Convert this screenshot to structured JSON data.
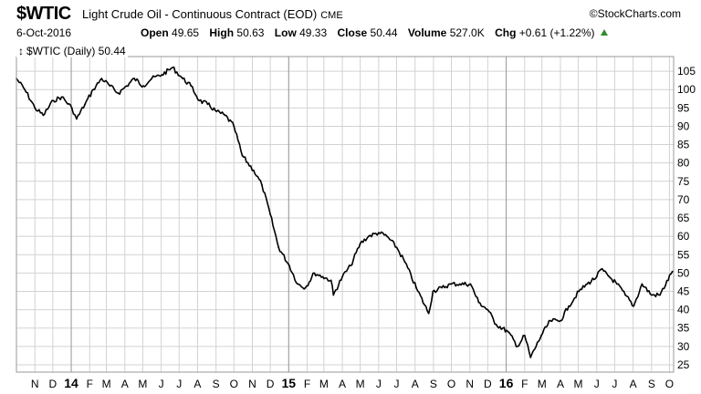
{
  "header": {
    "symbol": "$WTIC",
    "description": "Light Crude Oil - Continuous Contract (EOD)",
    "exchange": "CME",
    "brand": "©StockCharts.com",
    "date": "6-Oct-2016",
    "open_label": "Open",
    "open": "49.65",
    "high_label": "High",
    "high": "50.63",
    "low_label": "Low",
    "low": "49.33",
    "close_label": "Close",
    "close": "50.44",
    "volume_label": "Volume",
    "volume": "527.0K",
    "chg_label": "Chg",
    "chg": "+0.61 (+1.22%)"
  },
  "legend": {
    "mark": "↕",
    "text": "$WTIC (Daily) 50.44"
  },
  "colors": {
    "line": "#000000",
    "grid": "#d2d2d2",
    "frame": "#9a9a9a",
    "up": "#2e8b2e"
  },
  "chart_data": {
    "type": "line",
    "series": [
      {
        "name": "$WTIC (Daily)",
        "x": [
          "2013-10-01",
          "2013-10-15",
          "2013-11-01",
          "2013-11-15",
          "2013-12-02",
          "2013-12-16",
          "2014-01-02",
          "2014-01-10",
          "2014-01-24",
          "2014-02-07",
          "2014-02-21",
          "2014-03-07",
          "2014-03-21",
          "2014-04-04",
          "2014-04-17",
          "2014-05-02",
          "2014-05-16",
          "2014-06-02",
          "2014-06-20",
          "2014-07-07",
          "2014-07-21",
          "2014-08-04",
          "2014-08-18",
          "2014-09-02",
          "2014-09-16",
          "2014-10-01",
          "2014-10-15",
          "2014-11-03",
          "2014-11-17",
          "2014-12-01",
          "2014-12-15",
          "2015-01-02",
          "2015-01-16",
          "2015-01-29",
          "2015-02-13",
          "2015-02-27",
          "2015-03-13",
          "2015-03-17",
          "2015-04-01",
          "2015-04-15",
          "2015-05-01",
          "2015-05-15",
          "2015-06-01",
          "2015-06-15",
          "2015-07-01",
          "2015-07-15",
          "2015-08-03",
          "2015-08-24",
          "2015-08-31",
          "2015-09-15",
          "2015-10-01",
          "2015-10-15",
          "2015-11-02",
          "2015-11-16",
          "2015-12-01",
          "2015-12-15",
          "2016-01-04",
          "2016-01-20",
          "2016-02-01",
          "2016-02-11",
          "2016-02-29",
          "2016-03-15",
          "2016-04-01",
          "2016-04-15",
          "2016-05-02",
          "2016-05-16",
          "2016-06-01",
          "2016-06-08",
          "2016-06-22",
          "2016-07-05",
          "2016-07-19",
          "2016-08-02",
          "2016-08-16",
          "2016-09-01",
          "2016-09-15",
          "2016-10-06"
        ],
        "values": [
          103,
          100,
          95,
          93,
          97,
          98,
          95,
          92,
          96,
          100,
          103,
          101,
          99,
          101,
          103,
          101,
          103,
          104,
          106,
          103,
          101,
          97,
          96,
          94,
          93,
          90,
          82,
          78,
          74,
          66,
          57,
          52,
          47,
          46,
          50,
          49,
          48,
          44,
          49,
          52,
          58,
          60,
          61,
          60,
          57,
          53,
          46,
          39,
          45,
          46,
          47,
          47,
          47,
          42,
          40,
          36,
          34,
          30,
          33,
          27,
          33,
          37,
          37,
          41,
          45,
          47,
          49,
          51,
          49,
          47,
          44,
          41,
          47,
          44,
          44,
          50.44
        ]
      }
    ],
    "title": "$WTIC (Daily) 50.44",
    "xlabel": "",
    "ylabel": "",
    "ylim": [
      23,
      109
    ],
    "xrange": [
      "2013-10-01",
      "2016-10-08"
    ],
    "yticks": [
      25,
      30,
      35,
      40,
      45,
      50,
      55,
      60,
      65,
      70,
      75,
      80,
      85,
      90,
      95,
      100,
      105
    ],
    "xticks": [
      {
        "date": "2013-11-01",
        "label": "N",
        "bold": false
      },
      {
        "date": "2013-12-01",
        "label": "D",
        "bold": false
      },
      {
        "date": "2014-01-01",
        "label": "14",
        "bold": true
      },
      {
        "date": "2014-02-01",
        "label": "F",
        "bold": false
      },
      {
        "date": "2014-03-01",
        "label": "M",
        "bold": false
      },
      {
        "date": "2014-04-01",
        "label": "A",
        "bold": false
      },
      {
        "date": "2014-05-01",
        "label": "M",
        "bold": false
      },
      {
        "date": "2014-06-01",
        "label": "J",
        "bold": false
      },
      {
        "date": "2014-07-01",
        "label": "J",
        "bold": false
      },
      {
        "date": "2014-08-01",
        "label": "A",
        "bold": false
      },
      {
        "date": "2014-09-01",
        "label": "S",
        "bold": false
      },
      {
        "date": "2014-10-01",
        "label": "O",
        "bold": false
      },
      {
        "date": "2014-11-01",
        "label": "N",
        "bold": false
      },
      {
        "date": "2014-12-01",
        "label": "D",
        "bold": false
      },
      {
        "date": "2015-01-01",
        "label": "15",
        "bold": true
      },
      {
        "date": "2015-02-01",
        "label": "F",
        "bold": false
      },
      {
        "date": "2015-03-01",
        "label": "M",
        "bold": false
      },
      {
        "date": "2015-04-01",
        "label": "A",
        "bold": false
      },
      {
        "date": "2015-05-01",
        "label": "M",
        "bold": false
      },
      {
        "date": "2015-06-01",
        "label": "J",
        "bold": false
      },
      {
        "date": "2015-07-01",
        "label": "J",
        "bold": false
      },
      {
        "date": "2015-08-01",
        "label": "A",
        "bold": false
      },
      {
        "date": "2015-09-01",
        "label": "S",
        "bold": false
      },
      {
        "date": "2015-10-01",
        "label": "O",
        "bold": false
      },
      {
        "date": "2015-11-01",
        "label": "N",
        "bold": false
      },
      {
        "date": "2015-12-01",
        "label": "D",
        "bold": false
      },
      {
        "date": "2016-01-01",
        "label": "16",
        "bold": true
      },
      {
        "date": "2016-02-01",
        "label": "F",
        "bold": false
      },
      {
        "date": "2016-03-01",
        "label": "M",
        "bold": false
      },
      {
        "date": "2016-04-01",
        "label": "A",
        "bold": false
      },
      {
        "date": "2016-05-01",
        "label": "M",
        "bold": false
      },
      {
        "date": "2016-06-01",
        "label": "J",
        "bold": false
      },
      {
        "date": "2016-07-01",
        "label": "J",
        "bold": false
      },
      {
        "date": "2016-08-01",
        "label": "A",
        "bold": false
      },
      {
        "date": "2016-09-01",
        "label": "S",
        "bold": false
      },
      {
        "date": "2016-10-01",
        "label": "O",
        "bold": false
      }
    ],
    "grid": true
  }
}
